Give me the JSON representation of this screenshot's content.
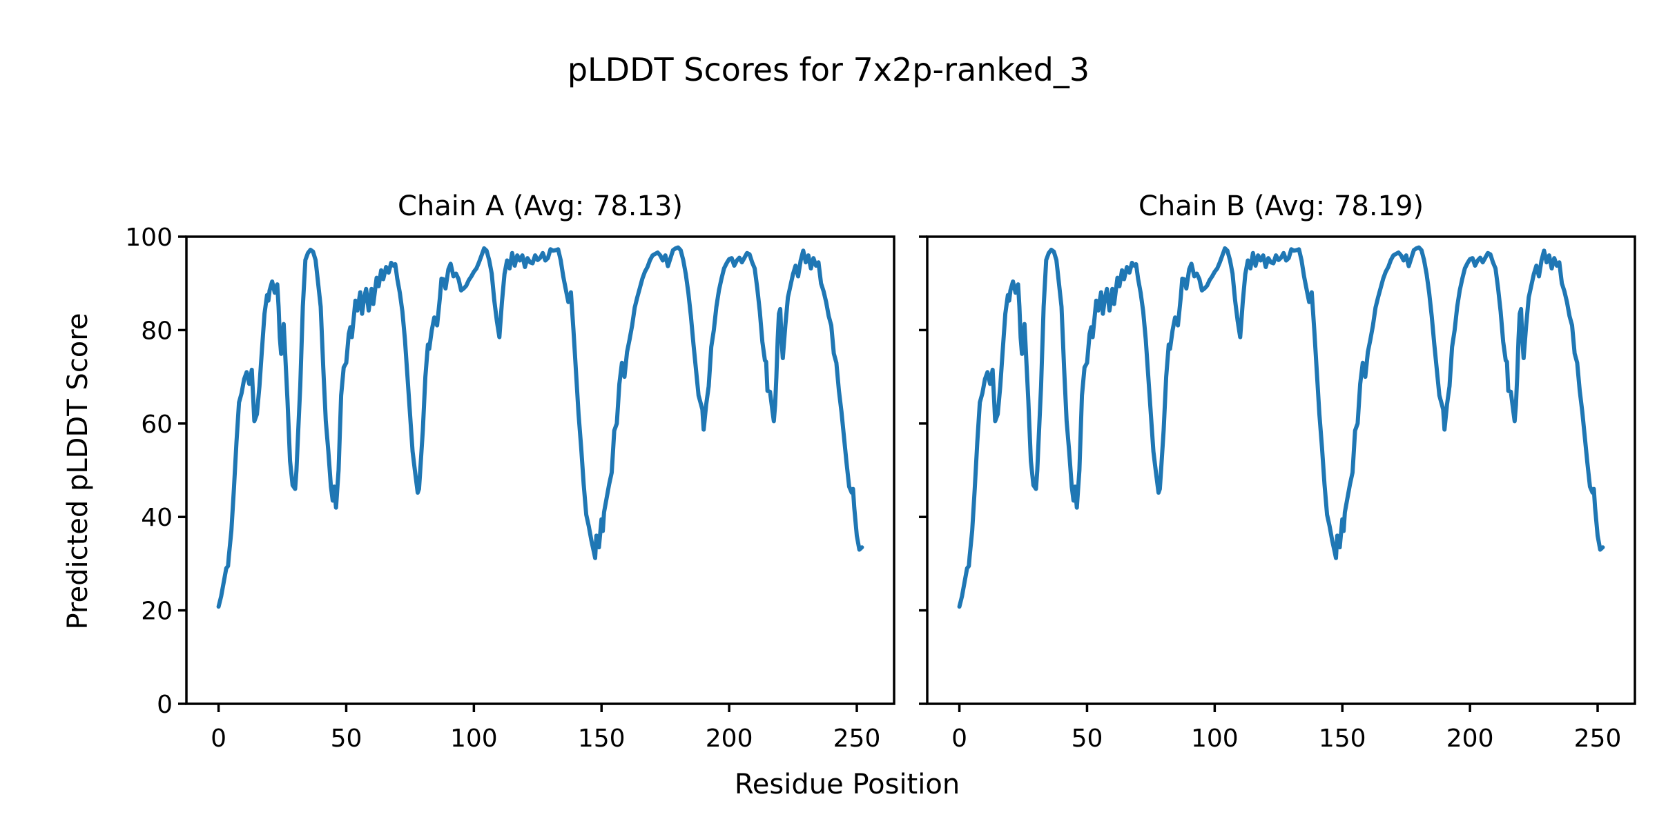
{
  "chart_data": {
    "type": "line",
    "suptitle": "pLDDT Scores for 7x2p-ranked_3",
    "xlabel": "Residue Position",
    "ylabel": "Predicted pLDDT Score",
    "xticks": [
      0,
      50,
      100,
      150,
      200,
      250
    ],
    "yticks": [
      0,
      20,
      40,
      60,
      80,
      100
    ],
    "xlim": [
      -12.6,
      264.6
    ],
    "ylim": [
      0,
      100
    ],
    "grid": false,
    "legend_position": "none",
    "line_color": "#1f77b4",
    "axis_color": "#000000",
    "background_color": "#ffffff",
    "subplots": [
      {
        "title": "Chain A (Avg: 78.13)",
        "chain": "A",
        "avg": 78.13,
        "show_y_tick_labels": true
      },
      {
        "title": "Chain B (Avg: 78.19)",
        "chain": "B",
        "avg": 78.19,
        "show_y_tick_labels": false
      }
    ],
    "points": [
      [
        0,
        20.8
      ],
      [
        1,
        23
      ],
      [
        2,
        26
      ],
      [
        3,
        29
      ],
      [
        3.7,
        29.5
      ],
      [
        4,
        31.5
      ],
      [
        5,
        37
      ],
      [
        6,
        46
      ],
      [
        7,
        56
      ],
      [
        8,
        64.5
      ],
      [
        9,
        66.5
      ],
      [
        10,
        69.5
      ],
      [
        11,
        71
      ],
      [
        12,
        68.5
      ],
      [
        13,
        71.5
      ],
      [
        14,
        60.5
      ],
      [
        15,
        62
      ],
      [
        16,
        68
      ],
      [
        17,
        76
      ],
      [
        18,
        83.5
      ],
      [
        19,
        87.5
      ],
      [
        19.5,
        86.3
      ],
      [
        20,
        88.5
      ],
      [
        21,
        90.4
      ],
      [
        22,
        88
      ],
      [
        23,
        89.8
      ],
      [
        23.5,
        85
      ],
      [
        24,
        78.4
      ],
      [
        24.5,
        74.9
      ],
      [
        25,
        77
      ],
      [
        25.5,
        81.3
      ],
      [
        26,
        76
      ],
      [
        27,
        65
      ],
      [
        28,
        52
      ],
      [
        29,
        46.8
      ],
      [
        30,
        46
      ],
      [
        30.5,
        50
      ],
      [
        31,
        56
      ],
      [
        32,
        68
      ],
      [
        33,
        85
      ],
      [
        34,
        95
      ],
      [
        35,
        96.5
      ],
      [
        36,
        97.2
      ],
      [
        37,
        96.8
      ],
      [
        38,
        95
      ],
      [
        39,
        90
      ],
      [
        40,
        85
      ],
      [
        41,
        72
      ],
      [
        42,
        60.5
      ],
      [
        43,
        54
      ],
      [
        44,
        46.5
      ],
      [
        44.7,
        43.5
      ],
      [
        45.3,
        46.5
      ],
      [
        46,
        42
      ],
      [
        47,
        50
      ],
      [
        48,
        66
      ],
      [
        49,
        72
      ],
      [
        50,
        73
      ],
      [
        51,
        79.2
      ],
      [
        51.6,
        80.6
      ],
      [
        52.2,
        78.5
      ],
      [
        53.6,
        86.3
      ],
      [
        54.4,
        84.2
      ],
      [
        55.5,
        88.1
      ],
      [
        56.2,
        83.5
      ],
      [
        57,
        86.9
      ],
      [
        57.8,
        88.8
      ],
      [
        58.8,
        84.2
      ],
      [
        59.9,
        88.8
      ],
      [
        60.6,
        85.6
      ],
      [
        61.9,
        91.2
      ],
      [
        62.7,
        89.4
      ],
      [
        63.7,
        92.8
      ],
      [
        64.5,
        90.9
      ],
      [
        65.6,
        93.5
      ],
      [
        66.6,
        92.3
      ],
      [
        67.6,
        94.4
      ],
      [
        68.5,
        93.8
      ],
      [
        69.2,
        94.1
      ],
      [
        70,
        91
      ],
      [
        71,
        88
      ],
      [
        72,
        84
      ],
      [
        73,
        78
      ],
      [
        74,
        70
      ],
      [
        75,
        62
      ],
      [
        76,
        54
      ],
      [
        77,
        49.5
      ],
      [
        78,
        45.2
      ],
      [
        78.5,
        46
      ],
      [
        79,
        50
      ],
      [
        80,
        58.5
      ],
      [
        81,
        70
      ],
      [
        82,
        76.9
      ],
      [
        82.5,
        76
      ],
      [
        83.5,
        79.9
      ],
      [
        84.5,
        82.7
      ],
      [
        85.6,
        81
      ],
      [
        86.7,
        87
      ],
      [
        87.3,
        91
      ],
      [
        88,
        90.9
      ],
      [
        88.9,
        88.9
      ],
      [
        90,
        93
      ],
      [
        90.9,
        94.2
      ],
      [
        92,
        91.5
      ],
      [
        93,
        92.1
      ],
      [
        94,
        90.9
      ],
      [
        95,
        88.5
      ],
      [
        96,
        88.9
      ],
      [
        97,
        89.5
      ],
      [
        98,
        90.7
      ],
      [
        99,
        91.5
      ],
      [
        100,
        92.5
      ],
      [
        101,
        93.2
      ],
      [
        102,
        94.5
      ],
      [
        103,
        96
      ],
      [
        104,
        97.5
      ],
      [
        105,
        97
      ],
      [
        106,
        95
      ],
      [
        107,
        92.1
      ],
      [
        108,
        86.4
      ],
      [
        109,
        82
      ],
      [
        110,
        78.5
      ],
      [
        111,
        86
      ],
      [
        112,
        92
      ],
      [
        113,
        94.9
      ],
      [
        114,
        93.2
      ],
      [
        115,
        96.5
      ],
      [
        116,
        93.8
      ],
      [
        117,
        96
      ],
      [
        118,
        94.9
      ],
      [
        119,
        96
      ],
      [
        120,
        93.5
      ],
      [
        121,
        95.4
      ],
      [
        122,
        94.5
      ],
      [
        123,
        94.3
      ],
      [
        124,
        96
      ],
      [
        125,
        95
      ],
      [
        126,
        95.5
      ],
      [
        127,
        96.5
      ],
      [
        128,
        94.9
      ],
      [
        129,
        95.4
      ],
      [
        130,
        97.3
      ],
      [
        131,
        97
      ],
      [
        132,
        97.1
      ],
      [
        133,
        97.3
      ],
      [
        134,
        95
      ],
      [
        135,
        91.5
      ],
      [
        136,
        88.7
      ],
      [
        137,
        86
      ],
      [
        138,
        88.1
      ],
      [
        139,
        80
      ],
      [
        140,
        71
      ],
      [
        141,
        62
      ],
      [
        142,
        55
      ],
      [
        143,
        47
      ],
      [
        144,
        40.5
      ],
      [
        145,
        38
      ],
      [
        146,
        35
      ],
      [
        147,
        32.5
      ],
      [
        147.5,
        31.2
      ],
      [
        148,
        36
      ],
      [
        149,
        33.5
      ],
      [
        150,
        39.5
      ],
      [
        150.5,
        37
      ],
      [
        151,
        41
      ],
      [
        152,
        44
      ],
      [
        153,
        47
      ],
      [
        154,
        49.5
      ],
      [
        155,
        58.5
      ],
      [
        156,
        60
      ],
      [
        157,
        68.5
      ],
      [
        158,
        73
      ],
      [
        159,
        70
      ],
      [
        160,
        75.3
      ],
      [
        161,
        78
      ],
      [
        162,
        81
      ],
      [
        163,
        84.8
      ],
      [
        164,
        87
      ],
      [
        165,
        89
      ],
      [
        166,
        91
      ],
      [
        167,
        92.5
      ],
      [
        168,
        93.5
      ],
      [
        169,
        95
      ],
      [
        170,
        96
      ],
      [
        171,
        96.3
      ],
      [
        172,
        96.6
      ],
      [
        173,
        96
      ],
      [
        174,
        94.9
      ],
      [
        175,
        96
      ],
      [
        176,
        93.7
      ],
      [
        177,
        95.4
      ],
      [
        178,
        97.1
      ],
      [
        179,
        97.5
      ],
      [
        180,
        97.7
      ],
      [
        181,
        97.1
      ],
      [
        182,
        95
      ],
      [
        183,
        92
      ],
      [
        184,
        88
      ],
      [
        185,
        83
      ],
      [
        186,
        77
      ],
      [
        187,
        71.5
      ],
      [
        188,
        66
      ],
      [
        189,
        64
      ],
      [
        189.5,
        63
      ],
      [
        190,
        58.7
      ],
      [
        191,
        64
      ],
      [
        192,
        68
      ],
      [
        193,
        76.4
      ],
      [
        194,
        80
      ],
      [
        195,
        85
      ],
      [
        196,
        88.5
      ],
      [
        197,
        91
      ],
      [
        198,
        93.2
      ],
      [
        199,
        94.3
      ],
      [
        200,
        95.2
      ],
      [
        201,
        95.4
      ],
      [
        202,
        93.8
      ],
      [
        203,
        94.9
      ],
      [
        204,
        95.5
      ],
      [
        205,
        94.5
      ],
      [
        206,
        95.5
      ],
      [
        207,
        96.5
      ],
      [
        208,
        96.2
      ],
      [
        209,
        94.5
      ],
      [
        210,
        93.2
      ],
      [
        211,
        89
      ],
      [
        212,
        84
      ],
      [
        213,
        77.5
      ],
      [
        214,
        73.5
      ],
      [
        214.5,
        73.2
      ],
      [
        215,
        67
      ],
      [
        216,
        66.8
      ],
      [
        217,
        62.5
      ],
      [
        217.5,
        60.5
      ],
      [
        218,
        64
      ],
      [
        218.5,
        70
      ],
      [
        219,
        78
      ],
      [
        219.5,
        83.5
      ],
      [
        220,
        84.5
      ],
      [
        220.5,
        78
      ],
      [
        221,
        74
      ],
      [
        222,
        81
      ],
      [
        223,
        87
      ],
      [
        224,
        89.5
      ],
      [
        225,
        92
      ],
      [
        226,
        93.8
      ],
      [
        227,
        91.5
      ],
      [
        228,
        94.9
      ],
      [
        229,
        97
      ],
      [
        230,
        94.5
      ],
      [
        231,
        96
      ],
      [
        232,
        93.2
      ],
      [
        233,
        95.4
      ],
      [
        234,
        93.8
      ],
      [
        235,
        94.5
      ],
      [
        236,
        90
      ],
      [
        237,
        88.3
      ],
      [
        238,
        86
      ],
      [
        239,
        83
      ],
      [
        240,
        81
      ],
      [
        241,
        75
      ],
      [
        242,
        73
      ],
      [
        243,
        67
      ],
      [
        244,
        62.5
      ],
      [
        245,
        57
      ],
      [
        246,
        51.5
      ],
      [
        247,
        46.5
      ],
      [
        248,
        45.2
      ],
      [
        248.5,
        46
      ],
      [
        249,
        42
      ],
      [
        250,
        36
      ],
      [
        251,
        33
      ],
      [
        252,
        33.5
      ]
    ]
  }
}
